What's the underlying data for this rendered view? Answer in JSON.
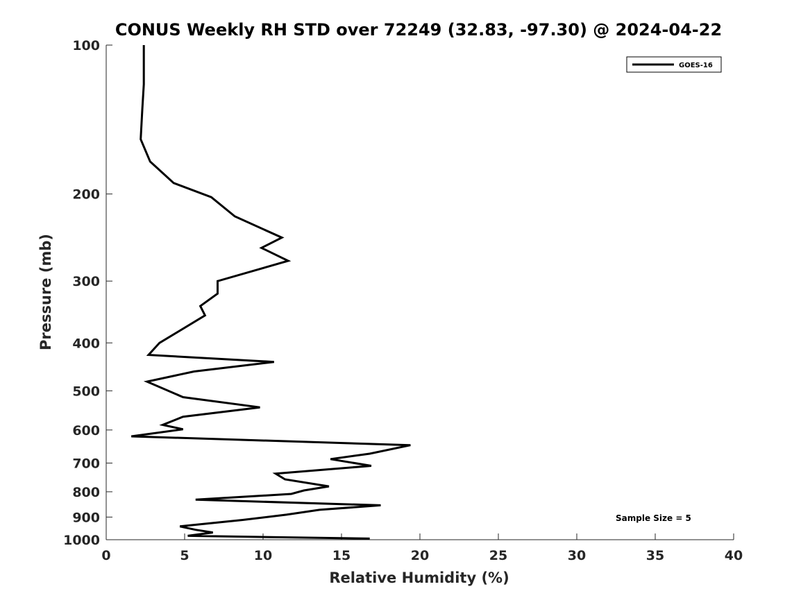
{
  "chart_data": {
    "type": "line",
    "title": "CONUS Weekly RH STD over 72249 (32.83, -97.30) @ 2024-04-22",
    "xlabel": "Relative Humidity (%)",
    "ylabel": "Pressure (mb)",
    "xlim": [
      0,
      40
    ],
    "ylim": [
      100,
      1000
    ],
    "yscale": "log",
    "reversed_y": true,
    "xticks": [
      0,
      5,
      10,
      15,
      20,
      25,
      30,
      35,
      40
    ],
    "yticks": [
      100,
      200,
      300,
      400,
      500,
      600,
      700,
      800,
      900,
      1000
    ],
    "legend": {
      "entries": [
        "GOES-16"
      ],
      "location": "top-right"
    },
    "annotation": "Sample Size = 5",
    "series": [
      {
        "name": "GOES-16",
        "color": "#000000",
        "x": [
          2.4,
          2.4,
          2.3,
          2.2,
          2.8,
          4.3,
          6.7,
          8.2,
          11.2,
          9.9,
          11.6,
          7.1,
          7.1,
          6.0,
          6.3,
          3.4,
          2.7,
          10.7,
          5.6,
          2.6,
          4.9,
          9.8,
          4.9,
          3.6,
          4.9,
          1.6,
          19.4,
          16.8,
          14.3,
          16.9,
          10.8,
          11.4,
          14.2,
          12.6,
          11.8,
          5.7,
          17.5,
          13.6,
          11.5,
          8.7,
          4.7,
          5.7,
          6.8,
          5.2,
          16.8
        ],
        "y": [
          100,
          120,
          135,
          155,
          172,
          190,
          203,
          222,
          245,
          257,
          273,
          300,
          318,
          337,
          352,
          400,
          423,
          437,
          457,
          479,
          515,
          540,
          564,
          586,
          598,
          618,
          644,
          670,
          687,
          709,
          735,
          755,
          780,
          795,
          808,
          830,
          852,
          870,
          890,
          912,
          940,
          955,
          967,
          982,
          995
        ]
      }
    ]
  }
}
